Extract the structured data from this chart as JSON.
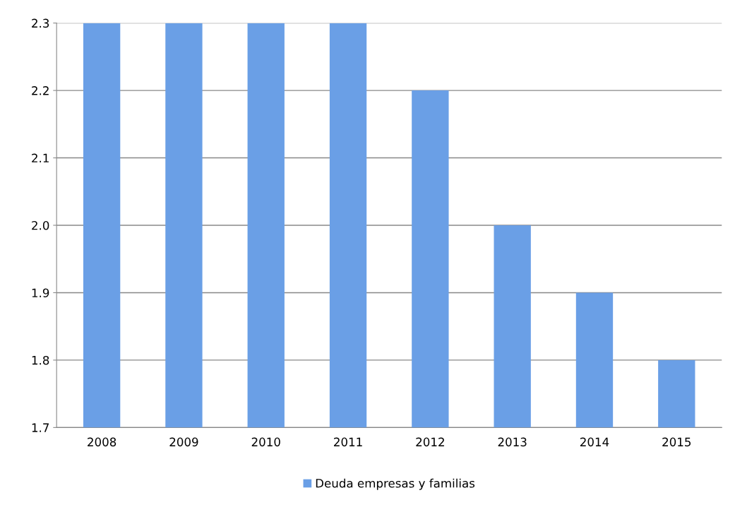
{
  "chart_data": {
    "type": "bar",
    "categories": [
      "2008",
      "2009",
      "2010",
      "2011",
      "2012",
      "2013",
      "2014",
      "2015"
    ],
    "series": [
      {
        "name": "Deuda empresas y familias",
        "color": "#6a9fe6",
        "values": [
          2.3,
          2.3,
          2.3,
          2.3,
          2.2,
          2.0,
          1.9,
          1.8
        ]
      }
    ],
    "ylim": [
      1.7,
      2.3
    ],
    "yticks": [
      1.7,
      1.8,
      1.9,
      {
        "value": 2.0,
        "label": "2.0"
      },
      2.1,
      2.2,
      2.3
    ],
    "grid": "y",
    "legend": "bottom"
  }
}
